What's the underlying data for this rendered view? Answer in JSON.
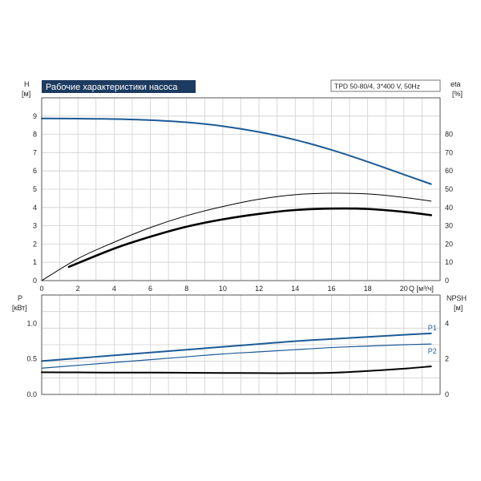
{
  "chart_data": [
    {
      "type": "line",
      "title": "Рабочие характеристики насоса",
      "model_label": "TPD 50-80/4, 3*400 V, 50Hz",
      "xlabel": "Q [м³/ч]",
      "x_unit_label": "Q [м³/ч]",
      "ylabel": "H",
      "ylabel_unit": "[м]",
      "y2label": "eta",
      "y2label_unit": "[%]",
      "xlim": [
        0,
        22
      ],
      "ylim": [
        0,
        10
      ],
      "y2lim": [
        0,
        100
      ],
      "x_ticks": [
        "0",
        "2",
        "4",
        "6",
        "8",
        "10",
        "12",
        "14",
        "16",
        "18",
        "20"
      ],
      "y_ticks": [
        "0",
        "1",
        "2",
        "3",
        "4",
        "5",
        "6",
        "7",
        "8",
        "9"
      ],
      "y2_ticks": [
        "0",
        "10",
        "20",
        "30",
        "40",
        "50",
        "60",
        "70",
        "80"
      ],
      "grid": true,
      "series": [
        {
          "axis": "left",
          "color": "#1d5a96",
          "x": [
            0,
            2,
            4,
            6,
            8,
            10,
            12,
            14,
            16,
            18,
            20,
            21.5
          ],
          "y": [
            8.87,
            8.86,
            8.84,
            8.78,
            8.66,
            8.45,
            8.13,
            7.7,
            7.15,
            6.5,
            5.8,
            5.28
          ]
        },
        {
          "axis": "right",
          "color": "#000000",
          "x": [
            0,
            2,
            4,
            6,
            8,
            10,
            12,
            14,
            16,
            18,
            20,
            21.5
          ],
          "y": [
            0,
            12,
            21,
            29,
            35.5,
            40.5,
            44.5,
            47,
            47.8,
            47.4,
            45.5,
            43.5
          ]
        },
        {
          "axis": "right",
          "color": "#000000",
          "x": [
            1.5,
            4,
            6,
            8,
            10,
            12,
            14,
            16,
            18,
            20,
            21.5
          ],
          "y": [
            7.5,
            17.5,
            24,
            29.5,
            33.5,
            36.5,
            38.6,
            39.4,
            39.2,
            37.6,
            35.8
          ]
        }
      ]
    },
    {
      "type": "line",
      "xlim": [
        0,
        22
      ],
      "ylabel": "P",
      "ylabel_unit": "[кВт]",
      "y2label": "NPSH",
      "y2label_unit": "[м]",
      "ylim": [
        0,
        1.4
      ],
      "y2lim": [
        0,
        5.6
      ],
      "y_ticks": [
        "0.0",
        "0.5",
        "1.0"
      ],
      "y2_ticks": [
        "0",
        "2",
        "4"
      ],
      "grid": true,
      "series": [
        {
          "name": "P1",
          "axis": "left",
          "color": "#1d5a96",
          "x": [
            0,
            2,
            4,
            6,
            8,
            10,
            12,
            14,
            16,
            18,
            20,
            21.5
          ],
          "y": [
            0.47,
            0.51,
            0.55,
            0.59,
            0.63,
            0.67,
            0.71,
            0.75,
            0.78,
            0.81,
            0.84,
            0.86
          ]
        },
        {
          "name": "P2",
          "axis": "left",
          "color": "#1d5a96",
          "x": [
            0,
            2,
            4,
            6,
            8,
            10,
            12,
            14,
            16,
            18,
            20,
            21.5
          ],
          "y": [
            0.37,
            0.41,
            0.45,
            0.49,
            0.53,
            0.57,
            0.6,
            0.63,
            0.66,
            0.68,
            0.7,
            0.71
          ]
        },
        {
          "axis": "right",
          "color": "#000000",
          "x": [
            0,
            2,
            4,
            6,
            8,
            10,
            12,
            14,
            16,
            18,
            20,
            21.5
          ],
          "y": [
            1.25,
            1.24,
            1.23,
            1.23,
            1.22,
            1.21,
            1.2,
            1.2,
            1.22,
            1.32,
            1.45,
            1.58
          ]
        }
      ]
    }
  ]
}
